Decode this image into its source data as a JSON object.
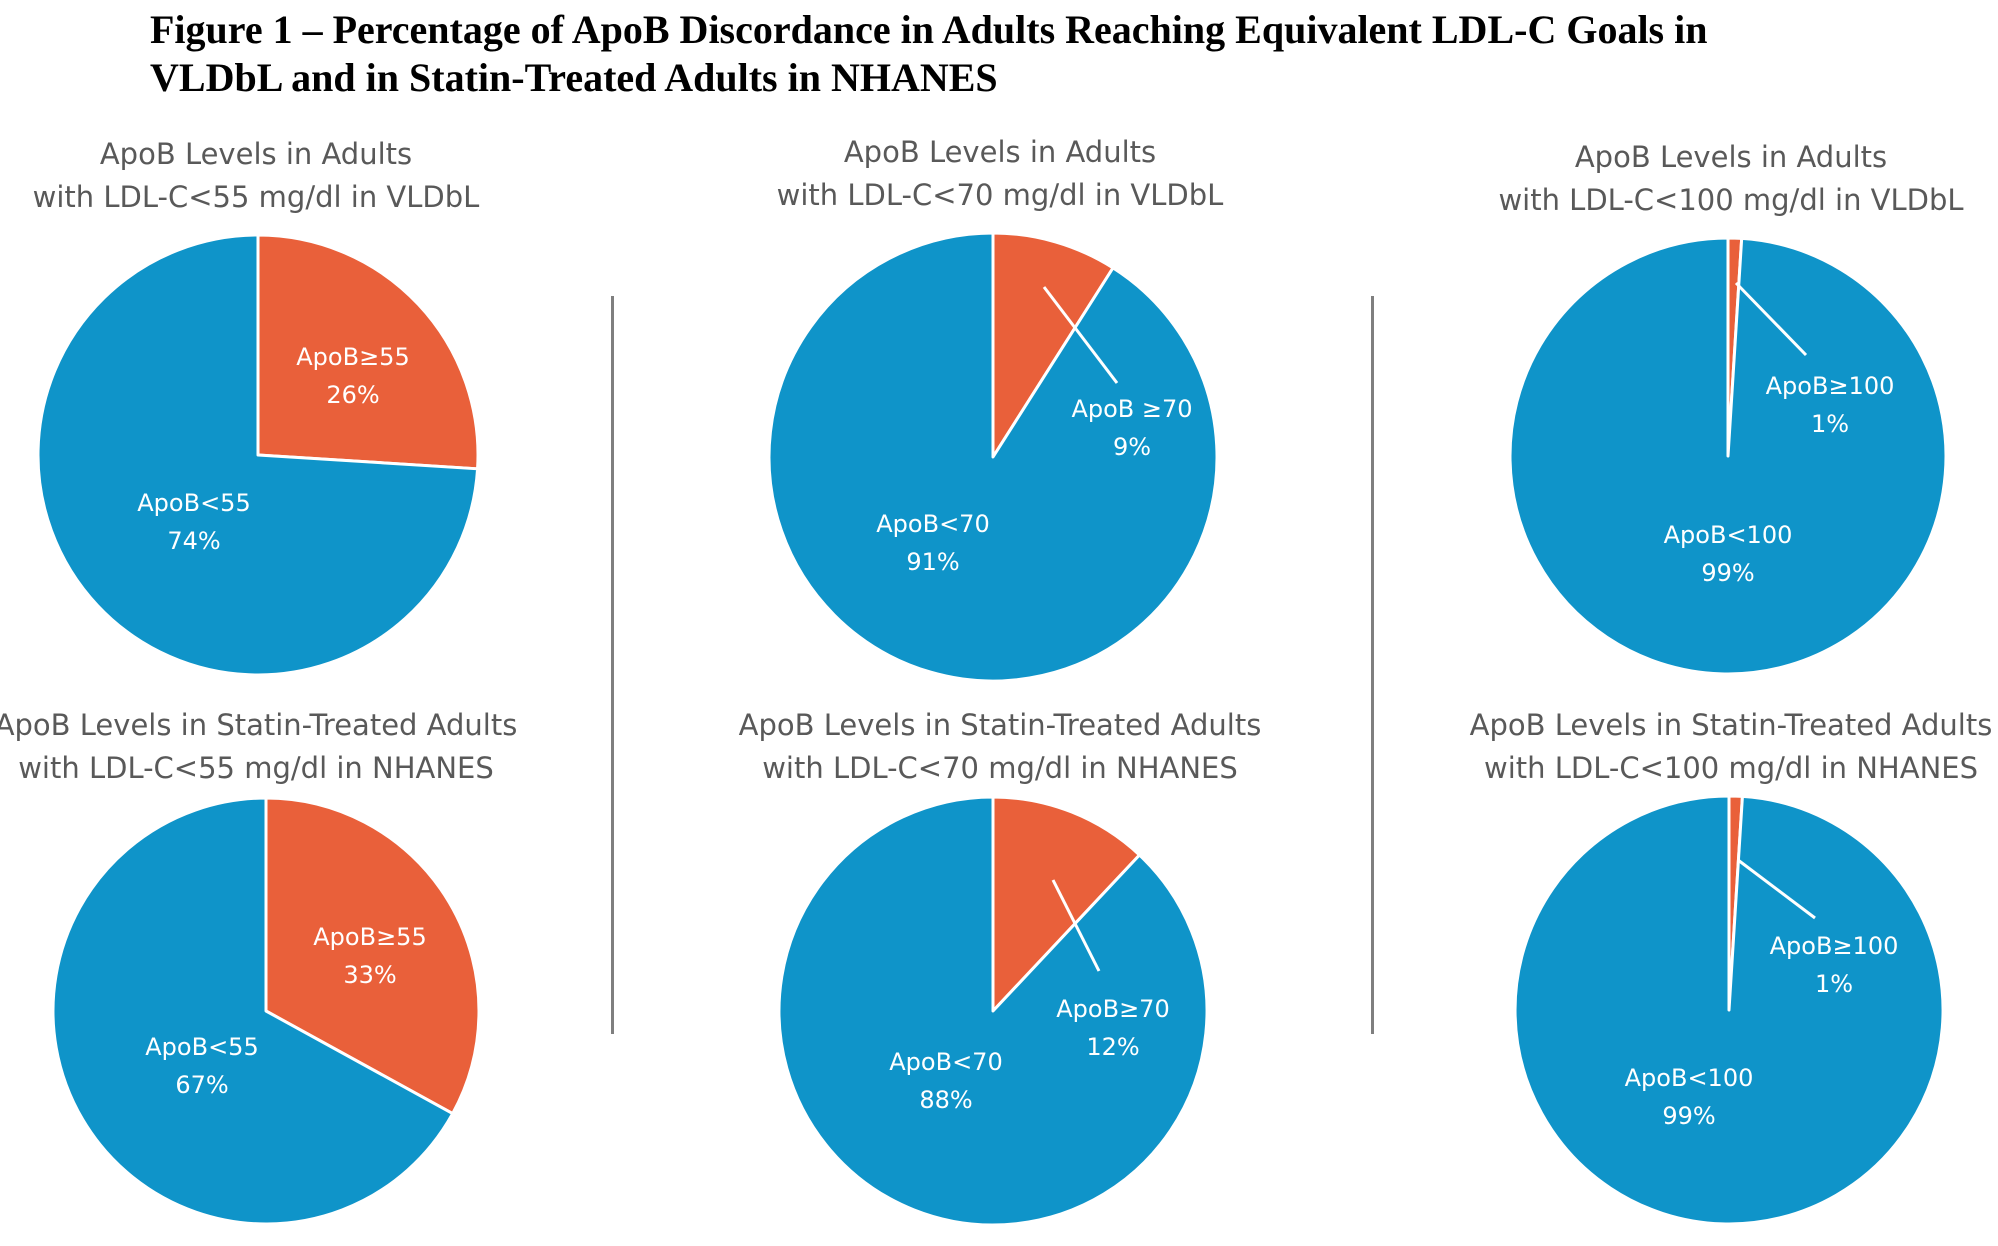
{
  "figure_title": {
    "line1": "Figure 1 – Percentage of ApoB Discordance in Adults Reaching Equivalent LDL-C Goals in",
    "line2": "VLDbL and in Statin-Treated Adults in NHANES"
  },
  "colors": {
    "below": "#0f94c9",
    "above": "#e9603a",
    "divider": "#7f7f7f",
    "title_text": "#595959"
  },
  "chart_data": [
    {
      "type": "pie",
      "title_lines": [
        "ApoB Levels in Adults",
        "with LDL-C<55 mg/dl in VLDbL"
      ],
      "slices": [
        {
          "label": "ApoB≥55",
          "value": 26,
          "text": "26%",
          "color": "#e9603a"
        },
        {
          "label": "ApoB<55",
          "value": 74,
          "text": "74%",
          "color": "#0f94c9"
        }
      ]
    },
    {
      "type": "pie",
      "title_lines": [
        "ApoB Levels in Adults",
        "with LDL-C<70 mg/dl in VLDbL"
      ],
      "slices": [
        {
          "label": "ApoB ≥70",
          "value": 9,
          "text": "9%",
          "color": "#e9603a"
        },
        {
          "label": "ApoB<70",
          "value": 91,
          "text": "91%",
          "color": "#0f94c9"
        }
      ]
    },
    {
      "type": "pie",
      "title_lines": [
        "ApoB Levels in Adults",
        "with LDL-C<100 mg/dl in VLDbL"
      ],
      "slices": [
        {
          "label": "ApoB≥100",
          "value": 1,
          "text": "1%",
          "color": "#e9603a"
        },
        {
          "label": "ApoB<100",
          "value": 99,
          "text": "99%",
          "color": "#0f94c9"
        }
      ]
    },
    {
      "type": "pie",
      "title_lines": [
        "ApoB Levels in Statin-Treated Adults",
        "with LDL-C<55 mg/dl in NHANES"
      ],
      "slices": [
        {
          "label": "ApoB≥55",
          "value": 33,
          "text": "33%",
          "color": "#e9603a"
        },
        {
          "label": "ApoB<55",
          "value": 67,
          "text": "67%",
          "color": "#0f94c9"
        }
      ]
    },
    {
      "type": "pie",
      "title_lines": [
        "ApoB Levels in Statin-Treated Adults",
        "with LDL-C<70 mg/dl in NHANES"
      ],
      "slices": [
        {
          "label": "ApoB≥70",
          "value": 12,
          "text": "12%",
          "color": "#e9603a"
        },
        {
          "label": "ApoB<70",
          "value": 88,
          "text": "88%",
          "color": "#0f94c9"
        }
      ]
    },
    {
      "type": "pie",
      "title_lines": [
        "ApoB Levels in Statin-Treated Adults",
        "with LDL-C<100 mg/dl in NHANES"
      ],
      "slices": [
        {
          "label": "ApoB≥100",
          "value": 1,
          "text": "1%",
          "color": "#e9603a"
        },
        {
          "label": "ApoB<100",
          "value": 99,
          "text": "99%",
          "color": "#0f94c9"
        }
      ]
    }
  ]
}
